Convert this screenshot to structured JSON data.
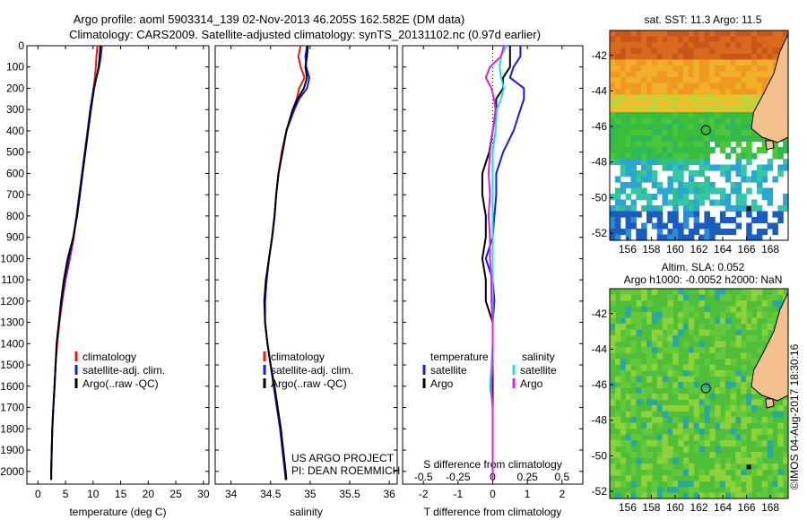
{
  "title_line1": "Argo profile: aoml 5903314_139 02-Nov-2013 46.205S 162.582E (DM data)",
  "title_line2": "Climatology: CARS2009. Satellite-adjusted climatology: synTS_20131102.nc (0.97d earlier)",
  "colors": {
    "climatology": "#e41a1c",
    "satellite": "#1a1adc",
    "argo": "#000000",
    "sal_sat": "#22dddd",
    "sal_argo": "#dd22dd"
  },
  "yaxis_ticks": [
    "0",
    "100",
    "200",
    "300",
    "400",
    "500",
    "600",
    "700",
    "800",
    "900",
    "1000",
    "1100",
    "1200",
    "1300",
    "1400",
    "1500",
    "1600",
    "1700",
    "1800",
    "1900",
    "2000"
  ],
  "chart_data": [
    {
      "type": "line",
      "xlabel": "temperature (deg C)",
      "xticks": [
        "0",
        "5",
        "10",
        "15",
        "20",
        "25",
        "30"
      ],
      "xlim": [
        -2,
        31
      ],
      "ylim": [
        0,
        2060
      ],
      "y_inverted": true,
      "legend": [
        "climatology",
        "satellite-adj. clim.",
        "Argo(..raw -QC)"
      ],
      "legend_position": "lower-middle",
      "depth": [
        0,
        50,
        100,
        150,
        200,
        250,
        300,
        400,
        500,
        600,
        700,
        800,
        900,
        1000,
        1100,
        1200,
        1300,
        1400,
        1500,
        1600,
        1700,
        1800,
        1900,
        2000,
        2040
      ],
      "series": [
        {
          "name": "climatology",
          "values": [
            10.8,
            10.6,
            10.5,
            10.3,
            10.1,
            9.8,
            9.5,
            9.0,
            8.5,
            8.0,
            7.5,
            7.0,
            6.5,
            5.8,
            5.0,
            4.4,
            3.9,
            3.5,
            3.2,
            3.0,
            2.8,
            2.6,
            2.5,
            2.4,
            2.4
          ]
        },
        {
          "name": "satellite-adj. clim.",
          "values": [
            11.6,
            11.4,
            11.1,
            10.6,
            10.1,
            9.8,
            9.5,
            9.0,
            8.5,
            8.0,
            7.5,
            7.0,
            6.4,
            5.6,
            4.9,
            4.3,
            3.8,
            3.4,
            3.2,
            3.0,
            2.8,
            2.6,
            2.5,
            2.4,
            2.4
          ]
        },
        {
          "name": "Argo(..raw -QC)",
          "values": [
            11.3,
            11.2,
            11.0,
            10.6,
            10.2,
            9.9,
            9.6,
            9.1,
            8.6,
            8.1,
            7.6,
            7.1,
            6.4,
            5.4,
            4.7,
            4.2,
            3.8,
            3.4,
            3.2,
            3.0,
            2.8,
            2.6,
            2.5,
            2.4,
            2.4
          ]
        }
      ]
    },
    {
      "type": "line",
      "xlabel": "salinity",
      "xticks": [
        "34",
        "34.5",
        "35",
        "35.5",
        "36"
      ],
      "xlim": [
        33.8,
        36.1
      ],
      "ylim": [
        0,
        2060
      ],
      "y_inverted": true,
      "legend": [
        "climatology",
        "satellite-adj. clim.",
        "Argo(..raw -QC)"
      ],
      "legend_position": "lower-middle",
      "annotation": [
        "US ARGO PROJECT",
        "PI: DEAN ROEMMICH"
      ],
      "depth": [
        0,
        50,
        100,
        150,
        200,
        250,
        300,
        400,
        500,
        600,
        700,
        800,
        900,
        1000,
        1100,
        1200,
        1300,
        1400,
        1500,
        1600,
        1700,
        1800,
        1900,
        2000,
        2040
      ],
      "series": [
        {
          "name": "climatology",
          "values": [
            34.88,
            34.85,
            34.88,
            34.93,
            34.86,
            34.83,
            34.78,
            34.7,
            34.64,
            34.6,
            34.57,
            34.55,
            34.52,
            34.48,
            34.45,
            34.43,
            34.43,
            34.46,
            34.5,
            34.54,
            34.58,
            34.62,
            34.65,
            34.68,
            34.69
          ]
        },
        {
          "name": "satellite-adj. clim.",
          "values": [
            34.96,
            34.94,
            34.95,
            34.99,
            34.96,
            34.86,
            34.8,
            34.7,
            34.65,
            34.6,
            34.57,
            34.55,
            34.52,
            34.48,
            34.45,
            34.43,
            34.43,
            34.46,
            34.5,
            34.54,
            34.58,
            34.62,
            34.65,
            34.68,
            34.69
          ]
        },
        {
          "name": "Argo(..raw -QC)",
          "values": [
            34.97,
            34.96,
            34.94,
            34.96,
            34.92,
            34.84,
            34.78,
            34.7,
            34.65,
            34.6,
            34.57,
            34.55,
            34.52,
            34.48,
            34.44,
            34.42,
            34.43,
            34.46,
            34.5,
            34.55,
            34.59,
            34.63,
            34.66,
            34.69,
            34.7
          ]
        }
      ]
    },
    {
      "type": "line",
      "xlabel": "T difference from climatology",
      "x2label": "S difference from climatology",
      "xticks": [
        "-2",
        "-1",
        "0",
        "1",
        "2"
      ],
      "x2ticks": [
        "-0.5",
        "-0.25",
        "0",
        "0.25",
        "0.5"
      ],
      "xlim": [
        -2.6,
        2.6
      ],
      "ylim": [
        0,
        2060
      ],
      "y_inverted": true,
      "legend": [
        "temperature",
        "satellite",
        "Argo",
        "salinity",
        "satellite",
        "Argo"
      ],
      "legend_position": "lower-middle",
      "depth": [
        0,
        50,
        100,
        150,
        200,
        250,
        300,
        400,
        500,
        600,
        700,
        800,
        900,
        1000,
        1100,
        1200,
        1300,
        1400,
        1500,
        1600,
        1700,
        1800,
        1900,
        2000,
        2040
      ],
      "series": [
        {
          "name": "temperature satellite",
          "values": [
            0.8,
            0.8,
            0.6,
            0.5,
            0.9,
            0.9,
            0.8,
            0.6,
            0.3,
            0.1,
            0.1,
            0.05,
            0.0,
            -0.2,
            0.0,
            0.05,
            0.0,
            0.0,
            0.0,
            0.0,
            0.0,
            0.0,
            0.0,
            0.0,
            0.0
          ]
        },
        {
          "name": "temperature Argo",
          "values": [
            0.5,
            0.5,
            0.5,
            0.3,
            0.3,
            0.1,
            0.1,
            0.0,
            -0.1,
            -0.3,
            -0.3,
            -0.2,
            -0.2,
            -0.3,
            -0.2,
            -0.2,
            0.0,
            0.0,
            0.0,
            0.0,
            0.0,
            0.0,
            0.0,
            0.0,
            0.0
          ]
        },
        {
          "name": "salinity satellite",
          "values": [
            0.1,
            0.06,
            0.05,
            0.06,
            0.08,
            0.06,
            0.03,
            0.02,
            0.0,
            0.0,
            0.0,
            0.0,
            0.0,
            0.0,
            0.0,
            0.0,
            0.0,
            0.0,
            -0.01,
            -0.02,
            0.0,
            0.0,
            0.0,
            0.0,
            0.0
          ]
        },
        {
          "name": "salinity Argo",
          "values": [
            0.08,
            0.06,
            -0.02,
            -0.05,
            -0.01,
            0.01,
            0.02,
            0.0,
            -0.02,
            -0.03,
            -0.02,
            -0.03,
            -0.02,
            -0.02,
            -0.01,
            -0.01,
            0.0,
            0.0,
            0.0,
            -0.01,
            0.0,
            0.0,
            0.0,
            0.0,
            0.0
          ]
        }
      ]
    },
    {
      "type": "heatmap",
      "title": "sat. SST: 11.3 Argo: 11.5",
      "xticks": [
        "156",
        "158",
        "160",
        "162",
        "164",
        "166",
        "168"
      ],
      "yticks": [
        "-42",
        "-44",
        "-46",
        "-48",
        "-50",
        "-52"
      ],
      "xlim": [
        154.5,
        169.5
      ],
      "ylim": [
        -52.4,
        -40.6
      ],
      "argo_position": {
        "lon": 162.582,
        "lat": -46.205
      }
    },
    {
      "type": "heatmap",
      "title": "Altim. SLA: 0.052",
      "subtitle": "Argo h1000: -0.0052 h2000: NaN",
      "xticks": [
        "156",
        "158",
        "160",
        "162",
        "164",
        "166",
        "168"
      ],
      "yticks": [
        "-42",
        "-44",
        "-46",
        "-48",
        "-50",
        "-52"
      ],
      "xlim": [
        154.5,
        169.5
      ],
      "ylim": [
        -52.4,
        -40.6
      ],
      "argo_position": {
        "lon": 162.582,
        "lat": -46.205
      }
    }
  ],
  "credit": "©IMOS 04-Aug-2017 18:30:16"
}
